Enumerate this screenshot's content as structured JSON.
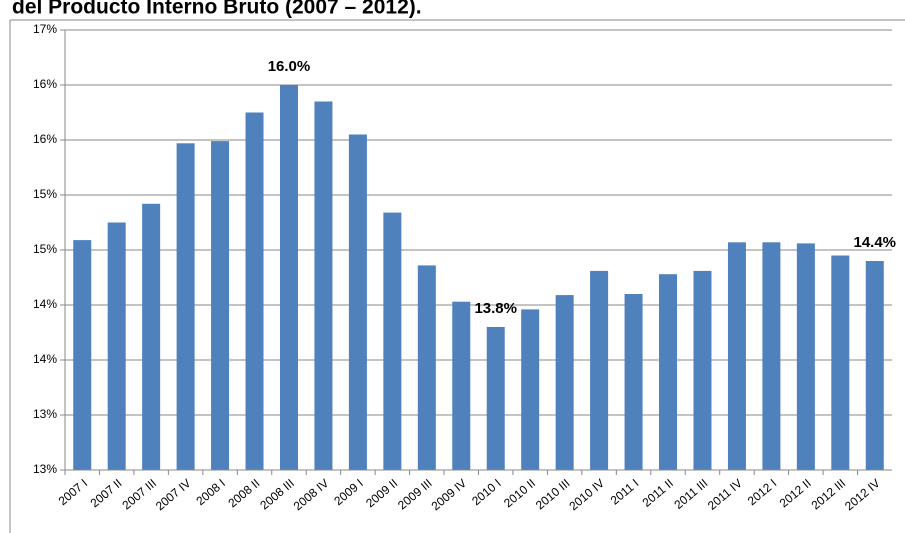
{
  "chart_data": {
    "type": "bar",
    "title": "del Producto Interno Bruto (2007 – 2012).",
    "categories": [
      "2007 I",
      "2007 II",
      "2007 III",
      "2007 IV",
      "2008 I",
      "2008 II",
      "2008 III",
      "2008 IV",
      "2009 I",
      "2009 II",
      "2009 III",
      "2009 IV",
      "2010 I",
      "2010 II",
      "2010 III",
      "2010 IV",
      "2011 I",
      "2011 II",
      "2011 III",
      "2011 IV",
      "2012 I",
      "2012 II",
      "2012 III",
      "2012 IV"
    ],
    "values": [
      14.59,
      14.75,
      14.92,
      15.47,
      15.49,
      15.75,
      16.0,
      15.85,
      15.55,
      14.84,
      14.36,
      14.03,
      13.8,
      13.96,
      14.09,
      14.31,
      14.1,
      14.28,
      14.31,
      14.57,
      14.57,
      14.56,
      14.45,
      14.4
    ],
    "value_labels": [
      null,
      null,
      null,
      null,
      null,
      null,
      "16.0%",
      null,
      null,
      null,
      null,
      null,
      "13.8%",
      null,
      null,
      null,
      null,
      null,
      null,
      null,
      null,
      null,
      null,
      "14.4%"
    ],
    "color": "#4f81bd",
    "ylim": [
      12.5,
      16.5
    ],
    "yticks": [
      {
        "value": 12.5,
        "label": "13%"
      },
      {
        "value": 13.0,
        "label": "13%"
      },
      {
        "value": 13.5,
        "label": "14%"
      },
      {
        "value": 14.0,
        "label": "14%"
      },
      {
        "value": 14.5,
        "label": "15%"
      },
      {
        "value": 15.0,
        "label": "15%"
      },
      {
        "value": 15.5,
        "label": "16%"
      },
      {
        "value": 16.0,
        "label": "16%"
      },
      {
        "value": 16.5,
        "label": "17%"
      }
    ]
  }
}
